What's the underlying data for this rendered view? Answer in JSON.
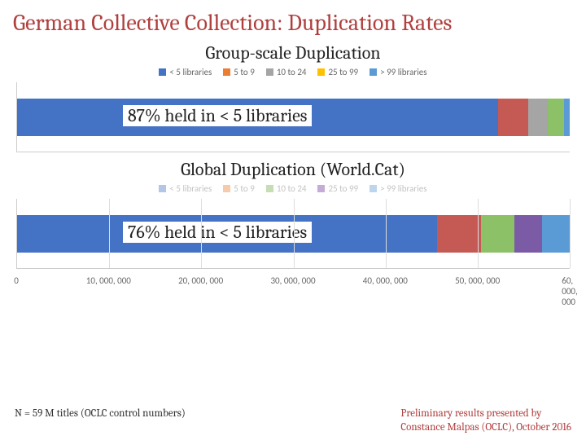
{
  "title": "German Collective Collection: Duplication Rates",
  "chart1": {
    "title": "Group-scale Duplication",
    "legend": [
      {
        "label": "< 5 libraries",
        "color": "#4472c4"
      },
      {
        "label": "5 to 9",
        "color": "#ed7d31"
      },
      {
        "label": "10 to 24",
        "color": "#a5a5a5"
      },
      {
        "label": "25 to 99",
        "color": "#ffc000"
      },
      {
        "label": "> 99 libraries",
        "color": "#5b9bd5"
      }
    ],
    "segments": [
      {
        "width_pct": 87,
        "color": "#4472c4"
      },
      {
        "width_pct": 5.5,
        "color": "#c55a54"
      },
      {
        "width_pct": 3.5,
        "color": "#a5a5a5"
      },
      {
        "width_pct": 3,
        "color": "#8cc168"
      },
      {
        "width_pct": 1,
        "color": "#5b9bd5"
      }
    ],
    "overlay": "87% held in < 5 libraries"
  },
  "chart2": {
    "title": "Global Duplication (World.Cat)",
    "legend": [
      {
        "label": "< 5 libraries",
        "color": "#4472c4"
      },
      {
        "label": "5 to 9",
        "color": "#ed7d31"
      },
      {
        "label": "10 to 24",
        "color": "#70ad47"
      },
      {
        "label": "25 to 99",
        "color": "#7030a0"
      },
      {
        "label": "> 99 libraries",
        "color": "#5b9bd5"
      }
    ],
    "segments": [
      {
        "width_pct": 76,
        "color": "#4472c4"
      },
      {
        "width_pct": 8,
        "color": "#c55a54"
      },
      {
        "width_pct": 6,
        "color": "#8cc168"
      },
      {
        "width_pct": 5,
        "color": "#7b5aa6"
      },
      {
        "width_pct": 5,
        "color": "#5b9bd5"
      }
    ],
    "overlay": "76% held in < 5 libraries",
    "xaxis": {
      "ticks": [
        "0",
        "10, 000, 000",
        "20, 000, 000",
        "30, 000, 000",
        "40, 000, 000",
        "50, 000, 000",
        "60, 000, 000"
      ],
      "positions_pct": [
        0,
        16.67,
        33.33,
        50,
        66.67,
        83.33,
        100
      ]
    }
  },
  "footer": {
    "left": "N = 59 M titles (OCLC control numbers)",
    "right_line1": "Preliminary results presented by",
    "right_line2": "Constance Malpas (OCLC), October 2016"
  }
}
